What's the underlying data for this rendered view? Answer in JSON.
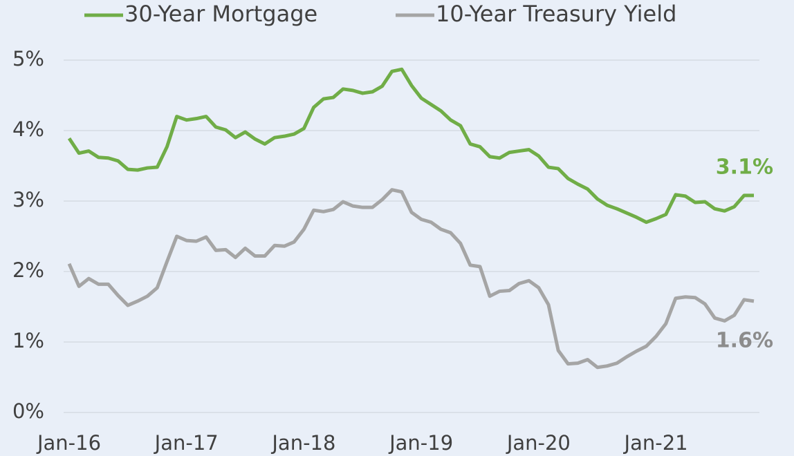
{
  "chart_data": {
    "type": "line",
    "categories": [
      "Jan-16",
      null,
      null,
      null,
      null,
      null,
      null,
      null,
      null,
      null,
      null,
      null,
      "Jan-17",
      null,
      null,
      null,
      null,
      null,
      null,
      null,
      null,
      null,
      null,
      null,
      "Jan-18",
      null,
      null,
      null,
      null,
      null,
      null,
      null,
      null,
      null,
      null,
      null,
      "Jan-19",
      null,
      null,
      null,
      null,
      null,
      null,
      null,
      null,
      null,
      null,
      null,
      "Jan-20",
      null,
      null,
      null,
      null,
      null,
      null,
      null,
      null,
      null,
      null,
      null,
      "Jan-21",
      null,
      null,
      null,
      null,
      null,
      null,
      null,
      null,
      null,
      null
    ],
    "series": [
      {
        "name": "30-Year Mortgage",
        "color": "#70ad47",
        "values": [
          3.89,
          3.68,
          3.71,
          3.62,
          3.61,
          3.57,
          3.45,
          3.44,
          3.47,
          3.48,
          3.77,
          4.2,
          4.15,
          4.17,
          4.2,
          4.05,
          4.01,
          3.9,
          3.98,
          3.88,
          3.81,
          3.9,
          3.92,
          3.95,
          4.03,
          4.33,
          4.45,
          4.47,
          4.59,
          4.57,
          4.53,
          4.55,
          4.63,
          4.84,
          4.87,
          4.64,
          4.46,
          4.37,
          4.28,
          4.15,
          4.07,
          3.81,
          3.77,
          3.63,
          3.61,
          3.69,
          3.71,
          3.73,
          3.64,
          3.48,
          3.46,
          3.32,
          3.24,
          3.17,
          3.03,
          2.94,
          2.89,
          2.83,
          2.77,
          2.7,
          2.75,
          2.81,
          3.09,
          3.07,
          2.98,
          2.99,
          2.89,
          2.86,
          2.92,
          3.08,
          3.08
        ],
        "value_labels": [
          null,
          null,
          null,
          null,
          null,
          null,
          null,
          null,
          null,
          null,
          null,
          null,
          null,
          null,
          null,
          null,
          null,
          null,
          null,
          null,
          null,
          null,
          null,
          null,
          null,
          null,
          null,
          null,
          null,
          null,
          null,
          null,
          null,
          null,
          null,
          null,
          null,
          null,
          null,
          null,
          null,
          null,
          null,
          null,
          null,
          null,
          null,
          null,
          null,
          null,
          null,
          null,
          null,
          null,
          null,
          null,
          null,
          null,
          null,
          null,
          null,
          null,
          null,
          null,
          null,
          null,
          null,
          null,
          null,
          null,
          "3.1%"
        ]
      },
      {
        "name": "10-Year Treasury Yield",
        "color": "#a5a5a5",
        "values": [
          2.11,
          1.79,
          1.9,
          1.82,
          1.82,
          1.66,
          1.52,
          1.58,
          1.65,
          1.77,
          2.14,
          2.5,
          2.44,
          2.43,
          2.49,
          2.3,
          2.31,
          2.2,
          2.33,
          2.22,
          2.22,
          2.37,
          2.36,
          2.42,
          2.6,
          2.87,
          2.85,
          2.88,
          2.99,
          2.93,
          2.91,
          2.91,
          3.02,
          3.16,
          3.13,
          2.84,
          2.74,
          2.7,
          2.6,
          2.55,
          2.4,
          2.09,
          2.07,
          1.65,
          1.72,
          1.73,
          1.83,
          1.87,
          1.77,
          1.53,
          0.88,
          0.69,
          0.7,
          0.75,
          0.64,
          0.66,
          0.7,
          0.79,
          0.87,
          0.94,
          1.08,
          1.26,
          1.62,
          1.64,
          1.63,
          1.54,
          1.34,
          1.3,
          1.38,
          1.6,
          1.58
        ],
        "value_labels": [
          null,
          null,
          null,
          null,
          null,
          null,
          null,
          null,
          null,
          null,
          null,
          null,
          null,
          null,
          null,
          null,
          null,
          null,
          null,
          null,
          null,
          null,
          null,
          null,
          null,
          null,
          null,
          null,
          null,
          null,
          null,
          null,
          null,
          null,
          null,
          null,
          null,
          null,
          null,
          null,
          null,
          null,
          null,
          null,
          null,
          null,
          null,
          null,
          null,
          null,
          null,
          null,
          null,
          null,
          null,
          null,
          null,
          null,
          null,
          null,
          null,
          null,
          null,
          null,
          null,
          null,
          null,
          null,
          null,
          null,
          "1.6%"
        ]
      }
    ],
    "ylim": [
      0,
      5
    ],
    "yticks": [
      {
        "value": 0,
        "label": "0%"
      },
      {
        "value": 1,
        "label": "1%"
      },
      {
        "value": 2,
        "label": "2%"
      },
      {
        "value": 3,
        "label": "3%"
      },
      {
        "value": 4,
        "label": "4%"
      },
      {
        "value": 5,
        "label": "5%"
      }
    ],
    "grid": true,
    "legend": "top"
  }
}
